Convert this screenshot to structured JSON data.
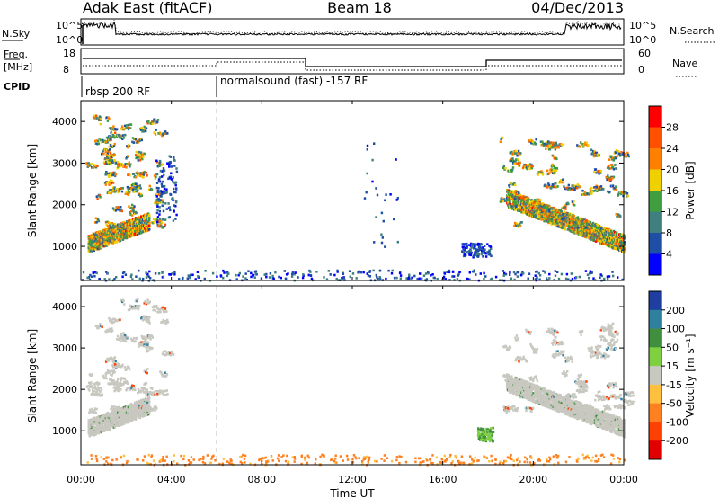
{
  "header": {
    "station": "Adak East (fitACF)",
    "beam": "Beam 18",
    "date": "04/Dec/2013"
  },
  "noise_panel": {
    "left_label": "N.Sky",
    "right_label": "N.Search",
    "tick_top_left": "10^5",
    "tick_bottom_left": "10^0",
    "tick_top_right": "10^5",
    "tick_bottom_right": "10^0"
  },
  "freq_panel": {
    "label_line1": "Freq.",
    "label_line2": "[MHz]",
    "tick_top": "18",
    "tick_bottom": "8",
    "right_tick_top": "60",
    "right_tick_bottom": "0",
    "right_label": "Nave"
  },
  "cpid": {
    "label": "CPID",
    "segments": [
      {
        "text": "rbsp 200 RF"
      },
      {
        "text": "normalsound (fast) -157 RF"
      }
    ]
  },
  "power_panel": {
    "ylabel": "Slant Range [km]",
    "yticks": [
      "1000",
      "2000",
      "3000",
      "4000"
    ],
    "colorbar_label": "Power [dB]",
    "colorbar_ticks": [
      "4",
      "8",
      "12",
      "16",
      "20",
      "24",
      "28"
    ],
    "colors": [
      "#0000ff",
      "#1f4ea6",
      "#3f7f7f",
      "#3f9f3f",
      "#f0d000",
      "#ff8000",
      "#ff5000",
      "#ff0000"
    ]
  },
  "velocity_panel": {
    "ylabel": "Slant Range [km]",
    "yticks": [
      "1000",
      "2000",
      "3000",
      "4000"
    ],
    "colorbar_label": "Velocity [m s⁻¹]",
    "colorbar_ticks": [
      "200",
      "100",
      "50",
      "15",
      "-15",
      "-50",
      "-100",
      "-200"
    ],
    "colors": [
      "#1e3ea0",
      "#2f7f9f",
      "#3f8f3f",
      "#7fd040",
      "#c8c8c0",
      "#ffc040",
      "#ff8020",
      "#ff4000",
      "#e00000"
    ]
  },
  "xaxis": {
    "ticks": [
      "00:00",
      "04:00",
      "08:00",
      "12:00",
      "16:00",
      "20:00",
      "00:00"
    ],
    "label": "Time UT"
  },
  "chart_data": [
    {
      "type": "heatmap",
      "title": "Power",
      "x_unit": "hours UT",
      "xlim": [
        0,
        24
      ],
      "ylim": [
        180,
        4500
      ],
      "clim": [
        0,
        30
      ],
      "features": [
        {
          "kind": "scatter_band",
          "x": [
            0.3,
            3.0
          ],
          "y_start": 1000,
          "y_end": 1550,
          "value": 26
        },
        {
          "kind": "patches",
          "x": [
            0.2,
            3.6
          ],
          "y": [
            1500,
            4200
          ],
          "value": 14
        },
        {
          "kind": "blob",
          "x": [
            3.3,
            4.2
          ],
          "y": [
            1600,
            3200
          ],
          "value": 6
        },
        {
          "kind": "sparse",
          "x": [
            12.5,
            14.0
          ],
          "y": [
            1000,
            3600
          ],
          "value": 5
        },
        {
          "kind": "blob",
          "x": [
            16.8,
            18.1
          ],
          "y": [
            760,
            1100
          ],
          "value": 5
        },
        {
          "kind": "scatter_band",
          "x": [
            18.8,
            24.0
          ],
          "y_start": 2100,
          "y_end": 1000,
          "value": 26
        },
        {
          "kind": "patches",
          "x": [
            18.5,
            24.0
          ],
          "y": [
            1500,
            3600
          ],
          "value": 14
        },
        {
          "kind": "ground",
          "x": [
            0,
            24
          ],
          "y": [
            200,
            450
          ],
          "value": 6
        }
      ]
    },
    {
      "type": "heatmap",
      "title": "Velocity",
      "x_unit": "hours UT",
      "xlim": [
        0,
        24
      ],
      "ylim": [
        180,
        4500
      ],
      "clim": [
        -200,
        200
      ],
      "features": [
        {
          "kind": "scatter_band",
          "x": [
            0.3,
            3.0
          ],
          "y_start": 1000,
          "y_end": 1550,
          "value": 0
        },
        {
          "kind": "patches",
          "x": [
            0.2,
            3.6
          ],
          "y": [
            1500,
            4200
          ],
          "value": 0
        },
        {
          "kind": "blob",
          "x": [
            17.5,
            18.2
          ],
          "y": [
            760,
            1100
          ],
          "value": 30
        },
        {
          "kind": "scatter_band",
          "x": [
            18.8,
            24.0
          ],
          "y_start": 2100,
          "y_end": 1000,
          "value": 0
        },
        {
          "kind": "patches",
          "x": [
            18.5,
            24.0
          ],
          "y": [
            1500,
            3600
          ],
          "value": 0
        },
        {
          "kind": "ground",
          "x": [
            0,
            24
          ],
          "y": [
            200,
            450
          ],
          "value": -40
        }
      ]
    }
  ]
}
